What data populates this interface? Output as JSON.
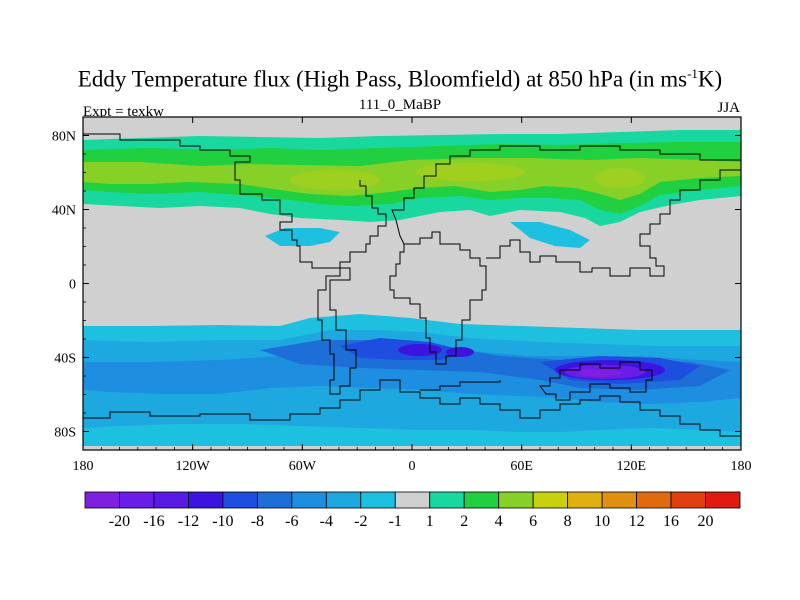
{
  "title": {
    "main_before": "Eddy Temperature flux (High Pass, Bloomfield) at 850 hPa (in ms",
    "main_sup": "-1",
    "main_after": "K)",
    "subtitle": "111_0_MaBP",
    "left": "Expt = texkw",
    "right": "JJA"
  },
  "axes": {
    "lat_ticks": [
      {
        "lat": 80,
        "label": "80N"
      },
      {
        "lat": 40,
        "label": "40N"
      },
      {
        "lat": 0,
        "label": "0"
      },
      {
        "lat": -40,
        "label": "40S"
      },
      {
        "lat": -80,
        "label": "80S"
      }
    ],
    "lon_ticks": [
      {
        "lon": -180,
        "label": "180"
      },
      {
        "lon": -120,
        "label": "120W"
      },
      {
        "lon": -60,
        "label": "60W"
      },
      {
        "lon": 0,
        "label": "0"
      },
      {
        "lon": 60,
        "label": "60E"
      },
      {
        "lon": 120,
        "label": "120E"
      },
      {
        "lon": 180,
        "label": "180"
      }
    ]
  },
  "colorbar": {
    "colors": [
      "#7f1fe0",
      "#6a1ce8",
      "#5a1ae6",
      "#3c14e0",
      "#1e4ee0",
      "#1e6ed8",
      "#1e8ee0",
      "#1ea8e0",
      "#1ec0e0",
      "#d0d0d0",
      "#18d8a0",
      "#20d040",
      "#86d028",
      "#c8d010",
      "#e0b010",
      "#e09010",
      "#e06a10",
      "#e04010",
      "#e01a10"
    ],
    "labels": [
      "-20",
      "-16",
      "-12",
      "-10",
      "-8",
      "-6",
      "-4",
      "-2",
      "-1",
      "1",
      "2",
      "4",
      "6",
      "8",
      "10",
      "12",
      "16",
      "20"
    ]
  },
  "chart_data": {
    "type": "heatmap",
    "title": "Eddy Temperature flux (High Pass, Bloomfield) at 850 hPa (in ms-1K)",
    "units": "ms-1K",
    "level": "850 hPa",
    "season": "JJA",
    "experiment": "texkw",
    "period": "111_0_MaBP",
    "lon_range": [
      -180,
      180
    ],
    "lat_range": [
      -90,
      90
    ],
    "levels": [
      -20,
      -16,
      -12,
      -10,
      -8,
      -6,
      -4,
      -2,
      -1,
      1,
      2,
      4,
      6,
      8,
      10,
      12,
      16,
      20
    ],
    "features": [
      {
        "name": "northern-midlatitude-positive-band",
        "lat_range": [
          35,
          80
        ],
        "lon_range": [
          -180,
          180
        ],
        "value_range": [
          1,
          8
        ]
      },
      {
        "name": "northern-max-eurasia",
        "lat": 55,
        "lon": 40,
        "value": 6
      },
      {
        "name": "southern-midlatitude-negative-band",
        "lat_range": [
          -85,
          -25
        ],
        "lon_range": [
          -180,
          180
        ],
        "value_range": [
          -20,
          -1
        ]
      },
      {
        "name": "southern-min-indian-ocean",
        "lat": -48,
        "lon": 110,
        "value": -16
      },
      {
        "name": "southern-min-south-atlantic",
        "lat": -35,
        "lon": 15,
        "value": -12
      }
    ]
  }
}
